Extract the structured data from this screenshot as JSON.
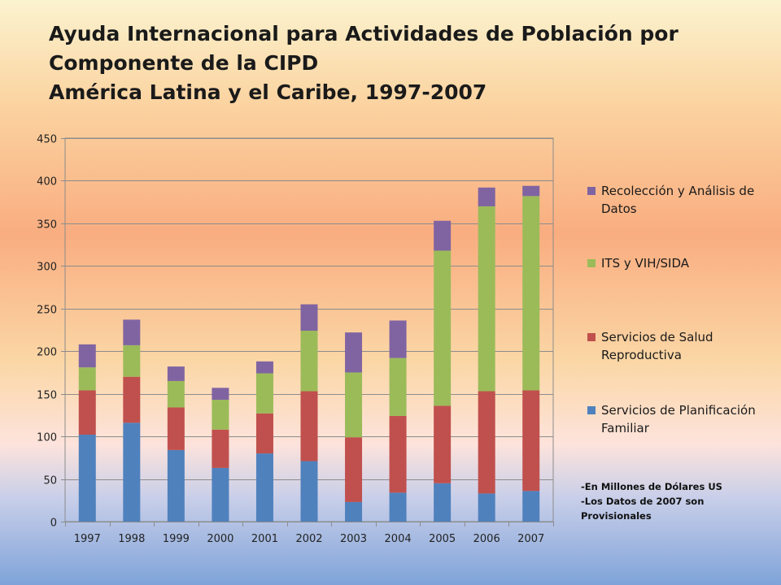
{
  "slide": {
    "title_lines": [
      "Ayuda Internacional para Actividades de Población por",
      "Componente de la CIPD",
      "América Latina y el Caribe, 1997-2007"
    ],
    "notes": [
      "-En Millones de Dólares US",
      "-Los Datos de 2007 son",
      "Provisionales"
    ]
  },
  "chart_data": {
    "type": "bar",
    "stacked": true,
    "categories": [
      "1997",
      "1998",
      "1999",
      "2000",
      "2001",
      "2002",
      "2003",
      "2004",
      "2005",
      "2006",
      "2007"
    ],
    "ylim": [
      0,
      450
    ],
    "yticks": [
      0,
      50,
      100,
      150,
      200,
      250,
      300,
      350,
      400,
      450
    ],
    "grid": true,
    "legend_position": "right",
    "series": [
      {
        "name": "Servicios de Planificación Familiar",
        "color": "#4f81bd",
        "values": [
          102,
          116,
          84,
          63,
          80,
          71,
          23,
          34,
          45,
          33,
          36
        ]
      },
      {
        "name": "Servicios de Salud Reproductiva",
        "color": "#c0504d",
        "values": [
          52,
          54,
          50,
          45,
          47,
          82,
          76,
          90,
          91,
          120,
          118
        ]
      },
      {
        "name": "ITS y VIH/SIDA",
        "color": "#9bbb59",
        "values": [
          27,
          37,
          31,
          35,
          47,
          71,
          76,
          68,
          182,
          217,
          228
        ]
      },
      {
        "name": "Recolección y Análisis de Datos",
        "color": "#8064a2",
        "values": [
          27,
          30,
          17,
          14,
          14,
          31,
          47,
          44,
          35,
          22,
          12
        ]
      }
    ]
  }
}
